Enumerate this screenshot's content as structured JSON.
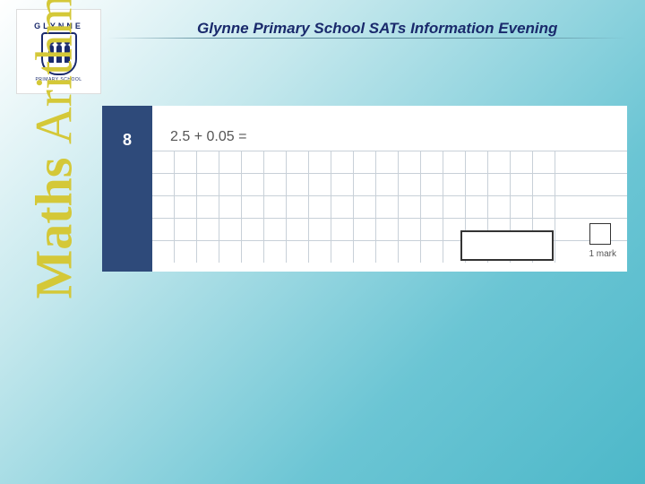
{
  "header": {
    "title": "Glynne Primary School SATs Information Evening",
    "title_color": "#1a2a6c",
    "title_fontsize": 17
  },
  "logo": {
    "top_text": "GLYNNE",
    "bottom_text": "PRIMARY SCHOOL",
    "crest_color": "#1a2a6c"
  },
  "vertical_label": {
    "bold_part": "Maths",
    "light_part": "Arithmetic",
    "color": "#d4c838",
    "fontsize": 58
  },
  "question": {
    "number": "8",
    "text": "2.5 + 0.05 =",
    "mark_label": "1 mark",
    "grid": {
      "rows": 5,
      "cols": 18,
      "cell_size": 25,
      "line_color": "#c8d0d8"
    },
    "number_col_bg": "#2e4a7a",
    "answer_box_border": "#333333",
    "mark_box_border": "#333333"
  },
  "background": {
    "gradient_stops": [
      "#ffffff",
      "#c5e8ed",
      "#6bc5d4",
      "#4db8c9"
    ]
  }
}
